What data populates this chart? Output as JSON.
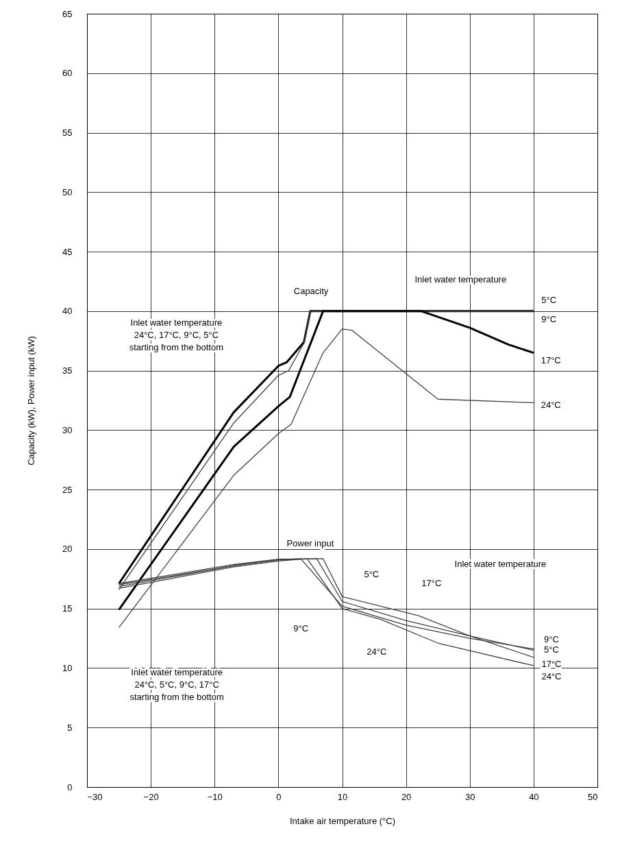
{
  "chart_data": {
    "type": "line",
    "xlabel": "Intake air temperature (°C)",
    "ylabel": "Capacity (kW), Power input (kW)",
    "xlim": [
      -30,
      50
    ],
    "xticks": [
      -30,
      -20,
      -10,
      0,
      10,
      20,
      30,
      40,
      50
    ],
    "ylim": [
      0,
      65
    ],
    "yticks": [
      0,
      5,
      10,
      15,
      20,
      25,
      30,
      35,
      40,
      45,
      50,
      55,
      60,
      65
    ],
    "grid": true,
    "line_style": "solid",
    "series": [
      {
        "color": "#000000",
        "x": [
          -25,
          -7,
          0,
          1.3,
          4,
          5,
          40
        ],
        "values": [
          17.1,
          31.5,
          35.4,
          35.7,
          37.4,
          40,
          40
        ]
      },
      {
        "color": "#404040",
        "x": [
          -25,
          -7,
          0,
          1.6,
          4,
          5,
          40
        ],
        "values": [
          16.6,
          30.6,
          34.6,
          35.0,
          37.3,
          40,
          40
        ]
      },
      {
        "color": "#000000",
        "x": [
          -25,
          -7,
          0,
          1.8,
          7,
          22.4,
          30,
          36,
          40
        ],
        "values": [
          14.9,
          28.6,
          32.0,
          32.8,
          40,
          40,
          38.6,
          37.2,
          36.5
        ]
      },
      {
        "color": "#404040",
        "x": [
          -25,
          -7,
          0,
          2,
          7,
          10,
          11.5,
          25,
          40
        ],
        "values": [
          13.4,
          26.2,
          29.7,
          30.5,
          36.5,
          38.5,
          38.4,
          32.6,
          32.3
        ]
      },
      {
        "color": "#404040",
        "x": [
          -25,
          -7,
          0,
          3.5,
          10,
          20,
          30,
          40
        ],
        "values": [
          17.0,
          18.6,
          19.1,
          19.2,
          15.2,
          13.6,
          12.5,
          11.6
        ]
      },
      {
        "color": "#404040",
        "x": [
          -25,
          -7,
          0,
          4.5,
          10,
          16,
          25,
          40
        ],
        "values": [
          16.7,
          18.5,
          19.0,
          19.2,
          15.0,
          14.1,
          12.1,
          10.2
        ]
      },
      {
        "color": "#404040",
        "x": [
          -25,
          -7,
          0,
          6,
          10,
          20,
          30,
          40
        ],
        "values": [
          16.85,
          18.6,
          19.1,
          19.2,
          15.6,
          14.0,
          12.7,
          11.5
        ]
      },
      {
        "color": "#404040",
        "x": [
          -25,
          -7,
          0,
          7,
          10,
          22,
          30,
          40
        ],
        "values": [
          17.1,
          18.7,
          19.15,
          19.2,
          16.0,
          14.4,
          12.7,
          10.9
        ]
      }
    ],
    "annotations": [
      "Capacity",
      "Inlet water temperature",
      "5°C",
      "9°C",
      "17°C",
      "24°C",
      "Inlet water temperature\n24°C, 17°C, 9°C, 5°C\nstarting from the bottom",
      "Power input",
      "5°C",
      "9°C",
      "24°C",
      "17°C",
      "Inlet water temperature",
      "9°C",
      "5°C",
      "17°C",
      "24°C",
      "Inlet water temperature\n24°C, 5°C, 9°C, 17°C\nstarting from the bottom"
    ]
  }
}
